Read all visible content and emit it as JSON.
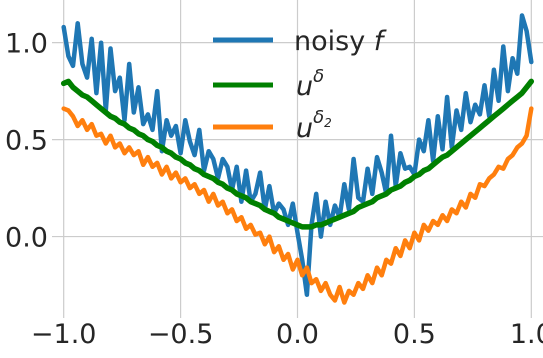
{
  "chart_data": {
    "type": "line",
    "title": "",
    "xlabel": "",
    "ylabel": "",
    "xlim": [
      -1.05,
      1.05
    ],
    "ylim": [
      -0.42,
      1.22
    ],
    "grid": true,
    "legend_position": "top-center",
    "xticks": [
      -1.0,
      -0.5,
      0.0,
      0.5,
      1.0
    ],
    "xtick_labels": [
      "−1.0",
      "−0.5",
      "0.0",
      "0.5",
      "1.0"
    ],
    "yticks": [
      0.0,
      0.5,
      1.0
    ],
    "ytick_labels": [
      "0.0",
      "0.5",
      "1.0"
    ],
    "x": [
      -1.0,
      -0.98,
      -0.96,
      -0.94,
      -0.92,
      -0.9,
      -0.88,
      -0.86,
      -0.84,
      -0.82,
      -0.8,
      -0.78,
      -0.76,
      -0.74,
      -0.72,
      -0.7,
      -0.68,
      -0.66,
      -0.64,
      -0.62,
      -0.6,
      -0.58,
      -0.56,
      -0.54,
      -0.52,
      -0.5,
      -0.48,
      -0.46,
      -0.44,
      -0.42,
      -0.4,
      -0.38,
      -0.36,
      -0.34,
      -0.32,
      -0.3,
      -0.28,
      -0.26,
      -0.24,
      -0.22,
      -0.2,
      -0.18,
      -0.16,
      -0.14,
      -0.12,
      -0.1,
      -0.08,
      -0.06,
      -0.04,
      -0.02,
      0.0,
      0.02,
      0.04,
      0.06,
      0.08,
      0.1,
      0.12,
      0.14,
      0.16,
      0.18,
      0.2,
      0.22,
      0.24,
      0.26,
      0.28,
      0.3,
      0.32,
      0.34,
      0.36,
      0.38,
      0.4,
      0.42,
      0.44,
      0.46,
      0.48,
      0.5,
      0.52,
      0.54,
      0.56,
      0.58,
      0.6,
      0.62,
      0.64,
      0.66,
      0.68,
      0.7,
      0.72,
      0.74,
      0.76,
      0.78,
      0.8,
      0.82,
      0.84,
      0.86,
      0.88,
      0.9,
      0.92,
      0.94,
      0.96,
      0.98,
      1.0
    ],
    "series": [
      {
        "name": "noisy f",
        "color": "#1f77b4",
        "values": [
          1.08,
          0.93,
          0.88,
          1.1,
          0.89,
          0.82,
          1.02,
          0.74,
          1.0,
          0.65,
          0.97,
          0.75,
          0.82,
          0.6,
          0.89,
          0.64,
          0.77,
          0.58,
          0.63,
          0.55,
          0.75,
          0.44,
          0.6,
          0.52,
          0.57,
          0.43,
          0.6,
          0.49,
          0.42,
          0.55,
          0.34,
          0.44,
          0.4,
          0.3,
          0.4,
          0.36,
          0.24,
          0.36,
          0.18,
          0.34,
          0.18,
          0.22,
          0.33,
          0.14,
          0.26,
          0.12,
          0.17,
          0.14,
          0.06,
          0.17,
          0.02,
          -0.12,
          -0.3,
          0.06,
          0.22,
          0.0,
          0.18,
          0.06,
          0.16,
          0.1,
          0.27,
          0.14,
          0.4,
          0.2,
          0.18,
          0.35,
          0.22,
          0.41,
          0.33,
          0.22,
          0.52,
          0.26,
          0.43,
          0.35,
          0.36,
          0.32,
          0.5,
          0.44,
          0.6,
          0.39,
          0.62,
          0.45,
          0.72,
          0.46,
          0.65,
          0.55,
          0.74,
          0.59,
          0.68,
          0.63,
          0.78,
          0.62,
          0.86,
          0.7,
          0.98,
          0.75,
          0.92,
          0.84,
          1.14,
          1.06,
          0.9
        ]
      },
      {
        "name": "u^δ",
        "color": "#008000",
        "values": [
          0.79,
          0.8,
          0.77,
          0.75,
          0.73,
          0.72,
          0.7,
          0.68,
          0.66,
          0.64,
          0.62,
          0.61,
          0.59,
          0.58,
          0.56,
          0.55,
          0.53,
          0.52,
          0.5,
          0.49,
          0.47,
          0.46,
          0.44,
          0.43,
          0.41,
          0.4,
          0.38,
          0.37,
          0.35,
          0.34,
          0.32,
          0.31,
          0.3,
          0.28,
          0.27,
          0.25,
          0.24,
          0.22,
          0.21,
          0.2,
          0.18,
          0.17,
          0.16,
          0.14,
          0.13,
          0.12,
          0.1,
          0.09,
          0.08,
          0.07,
          0.06,
          0.05,
          0.05,
          0.05,
          0.06,
          0.06,
          0.07,
          0.08,
          0.09,
          0.1,
          0.11,
          0.12,
          0.13,
          0.15,
          0.16,
          0.17,
          0.18,
          0.2,
          0.21,
          0.22,
          0.24,
          0.25,
          0.26,
          0.28,
          0.29,
          0.31,
          0.32,
          0.34,
          0.35,
          0.37,
          0.39,
          0.41,
          0.42,
          0.44,
          0.46,
          0.48,
          0.5,
          0.52,
          0.54,
          0.56,
          0.58,
          0.6,
          0.62,
          0.64,
          0.66,
          0.68,
          0.7,
          0.72,
          0.74,
          0.77,
          0.8
        ]
      },
      {
        "name": "u^{δ₂}",
        "color": "#ff7f0e",
        "values": [
          0.66,
          0.65,
          0.62,
          0.57,
          0.6,
          0.55,
          0.58,
          0.52,
          0.53,
          0.48,
          0.52,
          0.46,
          0.48,
          0.43,
          0.46,
          0.42,
          0.44,
          0.37,
          0.41,
          0.36,
          0.38,
          0.32,
          0.36,
          0.3,
          0.33,
          0.28,
          0.3,
          0.25,
          0.27,
          0.22,
          0.24,
          0.18,
          0.22,
          0.16,
          0.18,
          0.12,
          0.14,
          0.08,
          0.1,
          0.04,
          0.06,
          0.01,
          0.02,
          -0.04,
          0.0,
          -0.08,
          -0.05,
          -0.12,
          -0.09,
          -0.17,
          -0.12,
          -0.2,
          -0.16,
          -0.24,
          -0.22,
          -0.28,
          -0.24,
          -0.3,
          -0.33,
          -0.26,
          -0.34,
          -0.28,
          -0.3,
          -0.24,
          -0.27,
          -0.2,
          -0.24,
          -0.16,
          -0.2,
          -0.12,
          -0.14,
          -0.06,
          -0.1,
          -0.02,
          -0.06,
          0.02,
          -0.02,
          0.06,
          0.03,
          0.08,
          0.06,
          0.11,
          0.08,
          0.14,
          0.12,
          0.18,
          0.15,
          0.22,
          0.2,
          0.27,
          0.26,
          0.3,
          0.32,
          0.36,
          0.35,
          0.4,
          0.42,
          0.46,
          0.48,
          0.52,
          0.66
        ]
      }
    ]
  },
  "legend": {
    "items": [
      {
        "key": "noisy",
        "plain": "noisy ",
        "italic": "f",
        "color": "#1f77b4"
      },
      {
        "key": "u-delta",
        "base": "u",
        "sup": "δ",
        "color": "#008000"
      },
      {
        "key": "u-delta2",
        "base": "u",
        "sup": "δ",
        "sub": "2",
        "color": "#ff7f0e"
      }
    ]
  },
  "colors": {
    "grid": "#cccccc",
    "background": "#ffffff",
    "text": "#262626"
  }
}
